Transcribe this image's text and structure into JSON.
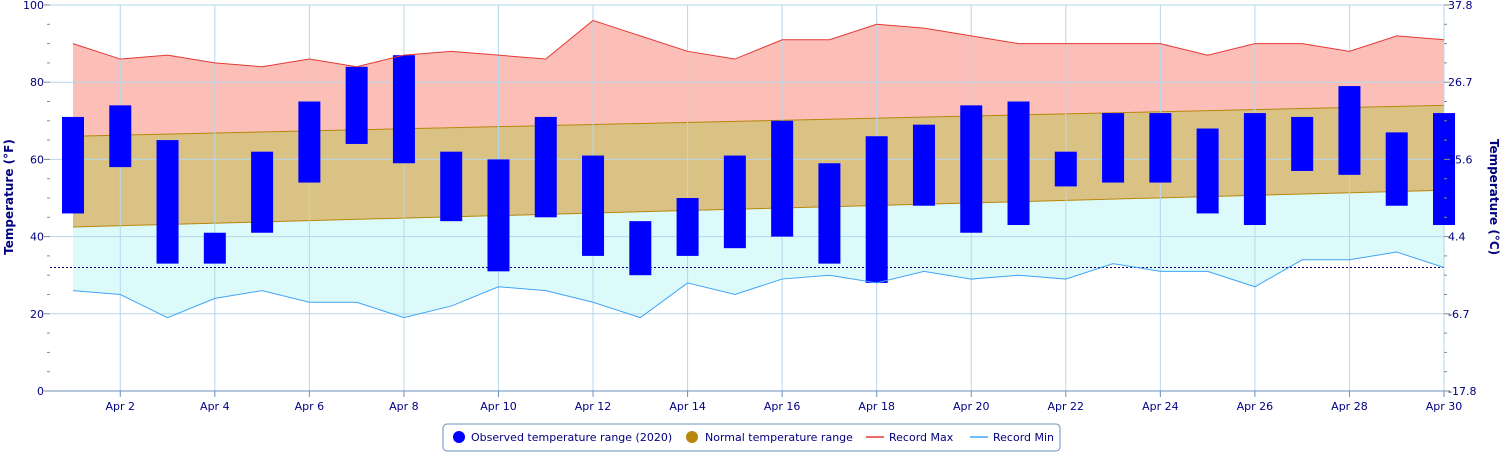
{
  "chart_data": {
    "type": "bar",
    "x_tick_labels": [
      "Apr 2",
      "Apr 4",
      "Apr 6",
      "Apr 8",
      "Apr 10",
      "Apr 12",
      "Apr 14",
      "Apr 16",
      "Apr 18",
      "Apr 20",
      "Apr 22",
      "Apr 24",
      "Apr 26",
      "Apr 28",
      "Apr 30"
    ],
    "x_tick_days": [
      2,
      4,
      6,
      8,
      10,
      12,
      14,
      16,
      18,
      20,
      22,
      24,
      26,
      28,
      30
    ],
    "xlim": [
      1,
      30
    ],
    "ylim": [
      0,
      100
    ],
    "y_ticks": [
      0,
      20,
      40,
      60,
      80,
      100
    ],
    "y_tick_labels": [
      "0",
      "20",
      "40",
      "60",
      "80",
      "100"
    ],
    "y2_tick_labels": [
      "-17.8",
      "-6.7",
      "4.4",
      "15.6",
      "26.7",
      "37.8"
    ],
    "ylabel": "Temperature (°F)",
    "y2label": "Temperature (°C)",
    "freezing_line": 32,
    "grid": true,
    "legend_position": "bottom-center",
    "series": [
      {
        "name": "Observed temperature range (2020)",
        "color": "#0000ff",
        "days": [
          1,
          2,
          3,
          4,
          5,
          6,
          7,
          8,
          9,
          10,
          11,
          12,
          13,
          14,
          15,
          16,
          17,
          18,
          19,
          20,
          21,
          22,
          23,
          24,
          25,
          26,
          27,
          28,
          29,
          30
        ],
        "low": [
          46,
          58,
          33,
          33,
          41,
          54,
          64,
          59,
          44,
          31,
          45,
          35,
          30,
          35,
          37,
          40,
          33,
          28,
          48,
          41,
          43,
          53,
          54,
          54,
          46,
          43,
          57,
          56,
          48,
          43
        ],
        "high": [
          71,
          74,
          65,
          41,
          62,
          75,
          84,
          87,
          62,
          60,
          71,
          61,
          44,
          50,
          61,
          70,
          59,
          66,
          69,
          74,
          75,
          62,
          72,
          72,
          68,
          72,
          71,
          79,
          67,
          72
        ]
      },
      {
        "name": "Normal temperature range",
        "color": "#b8860b",
        "days": [
          1,
          30
        ],
        "low": [
          42.5,
          52
        ],
        "high": [
          66,
          74
        ]
      },
      {
        "name": "Record Max",
        "color": "#e53935",
        "days": [
          1,
          2,
          3,
          4,
          5,
          6,
          7,
          8,
          9,
          10,
          11,
          12,
          13,
          14,
          15,
          16,
          17,
          18,
          19,
          20,
          21,
          22,
          23,
          24,
          25,
          26,
          27,
          28,
          29,
          30
        ],
        "values": [
          90,
          86,
          87,
          85,
          84,
          86,
          84,
          87,
          88,
          87,
          86,
          96,
          92,
          88,
          86,
          91,
          91,
          95,
          94,
          92,
          90,
          90,
          90,
          90,
          87,
          90,
          90,
          88,
          92,
          91
        ]
      },
      {
        "name": "Record Min",
        "color": "#42a5f5",
        "days": [
          1,
          2,
          3,
          4,
          5,
          6,
          7,
          8,
          9,
          10,
          11,
          12,
          13,
          14,
          15,
          16,
          17,
          18,
          19,
          20,
          21,
          22,
          23,
          24,
          25,
          26,
          27,
          28,
          29,
          30
        ],
        "values": [
          26,
          25,
          19,
          24,
          26,
          23,
          23,
          19,
          22,
          27,
          26,
          23,
          19,
          28,
          25,
          29,
          30,
          28,
          31,
          29,
          30,
          29,
          33,
          31,
          31,
          27,
          34,
          34,
          36,
          32
        ]
      }
    ],
    "colors": {
      "record_area": "#fbbfb8",
      "normal_area": "#dac285",
      "normal_line": "#b8860b",
      "min_area": "#dcfafa",
      "grid": "#b6d7ec",
      "axis_text": "#000080"
    }
  }
}
